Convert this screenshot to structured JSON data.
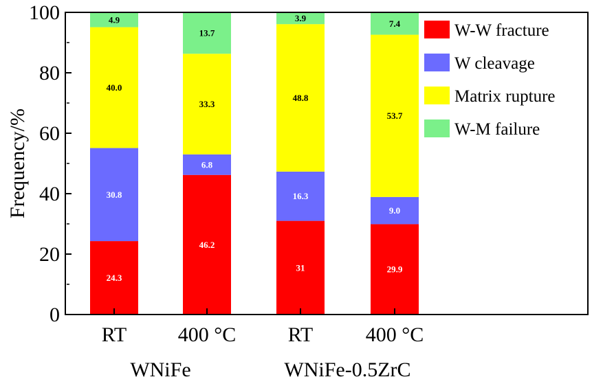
{
  "chart_data": {
    "type": "bar",
    "stacked": true,
    "categories": [
      "RT",
      "400 °C",
      "RT",
      "400 °C"
    ],
    "groups": [
      {
        "label": "WNiFe",
        "categories": [
          0,
          1
        ]
      },
      {
        "label": "WNiFe-0.5ZrC",
        "categories": [
          2,
          3
        ]
      }
    ],
    "series": [
      {
        "name": "W-W fracture",
        "color": "#ff0000",
        "label_color": "#ffffff",
        "values": [
          24.3,
          46.2,
          31,
          29.9
        ],
        "labels": [
          "24.3",
          "46.2",
          "31",
          "29.9"
        ]
      },
      {
        "name": "W cleavage",
        "color": "#6b6bff",
        "label_color": "#ffffff",
        "values": [
          30.8,
          6.8,
          16.3,
          9.0
        ],
        "labels": [
          "30.8",
          "6.8",
          "16.3",
          "9.0"
        ]
      },
      {
        "name": "Matrix rupture",
        "color": "#ffff00",
        "label_color": "#000000",
        "values": [
          40.0,
          33.3,
          48.8,
          53.7
        ],
        "labels": [
          "40.0",
          "33.3",
          "48.8",
          "53.7"
        ]
      },
      {
        "name": "W-M failure",
        "color": "#7bf08a",
        "label_color": "#000000",
        "values": [
          4.9,
          13.7,
          3.9,
          7.4
        ],
        "labels": [
          "4.9",
          "13.7",
          "3.9",
          "7.4"
        ]
      }
    ],
    "ylabel": "Frequency/%",
    "ylim": [
      0,
      100
    ],
    "yticks": [
      "0",
      "20",
      "40",
      "60",
      "80",
      "100"
    ],
    "grid": false,
    "legend": "top-right"
  }
}
